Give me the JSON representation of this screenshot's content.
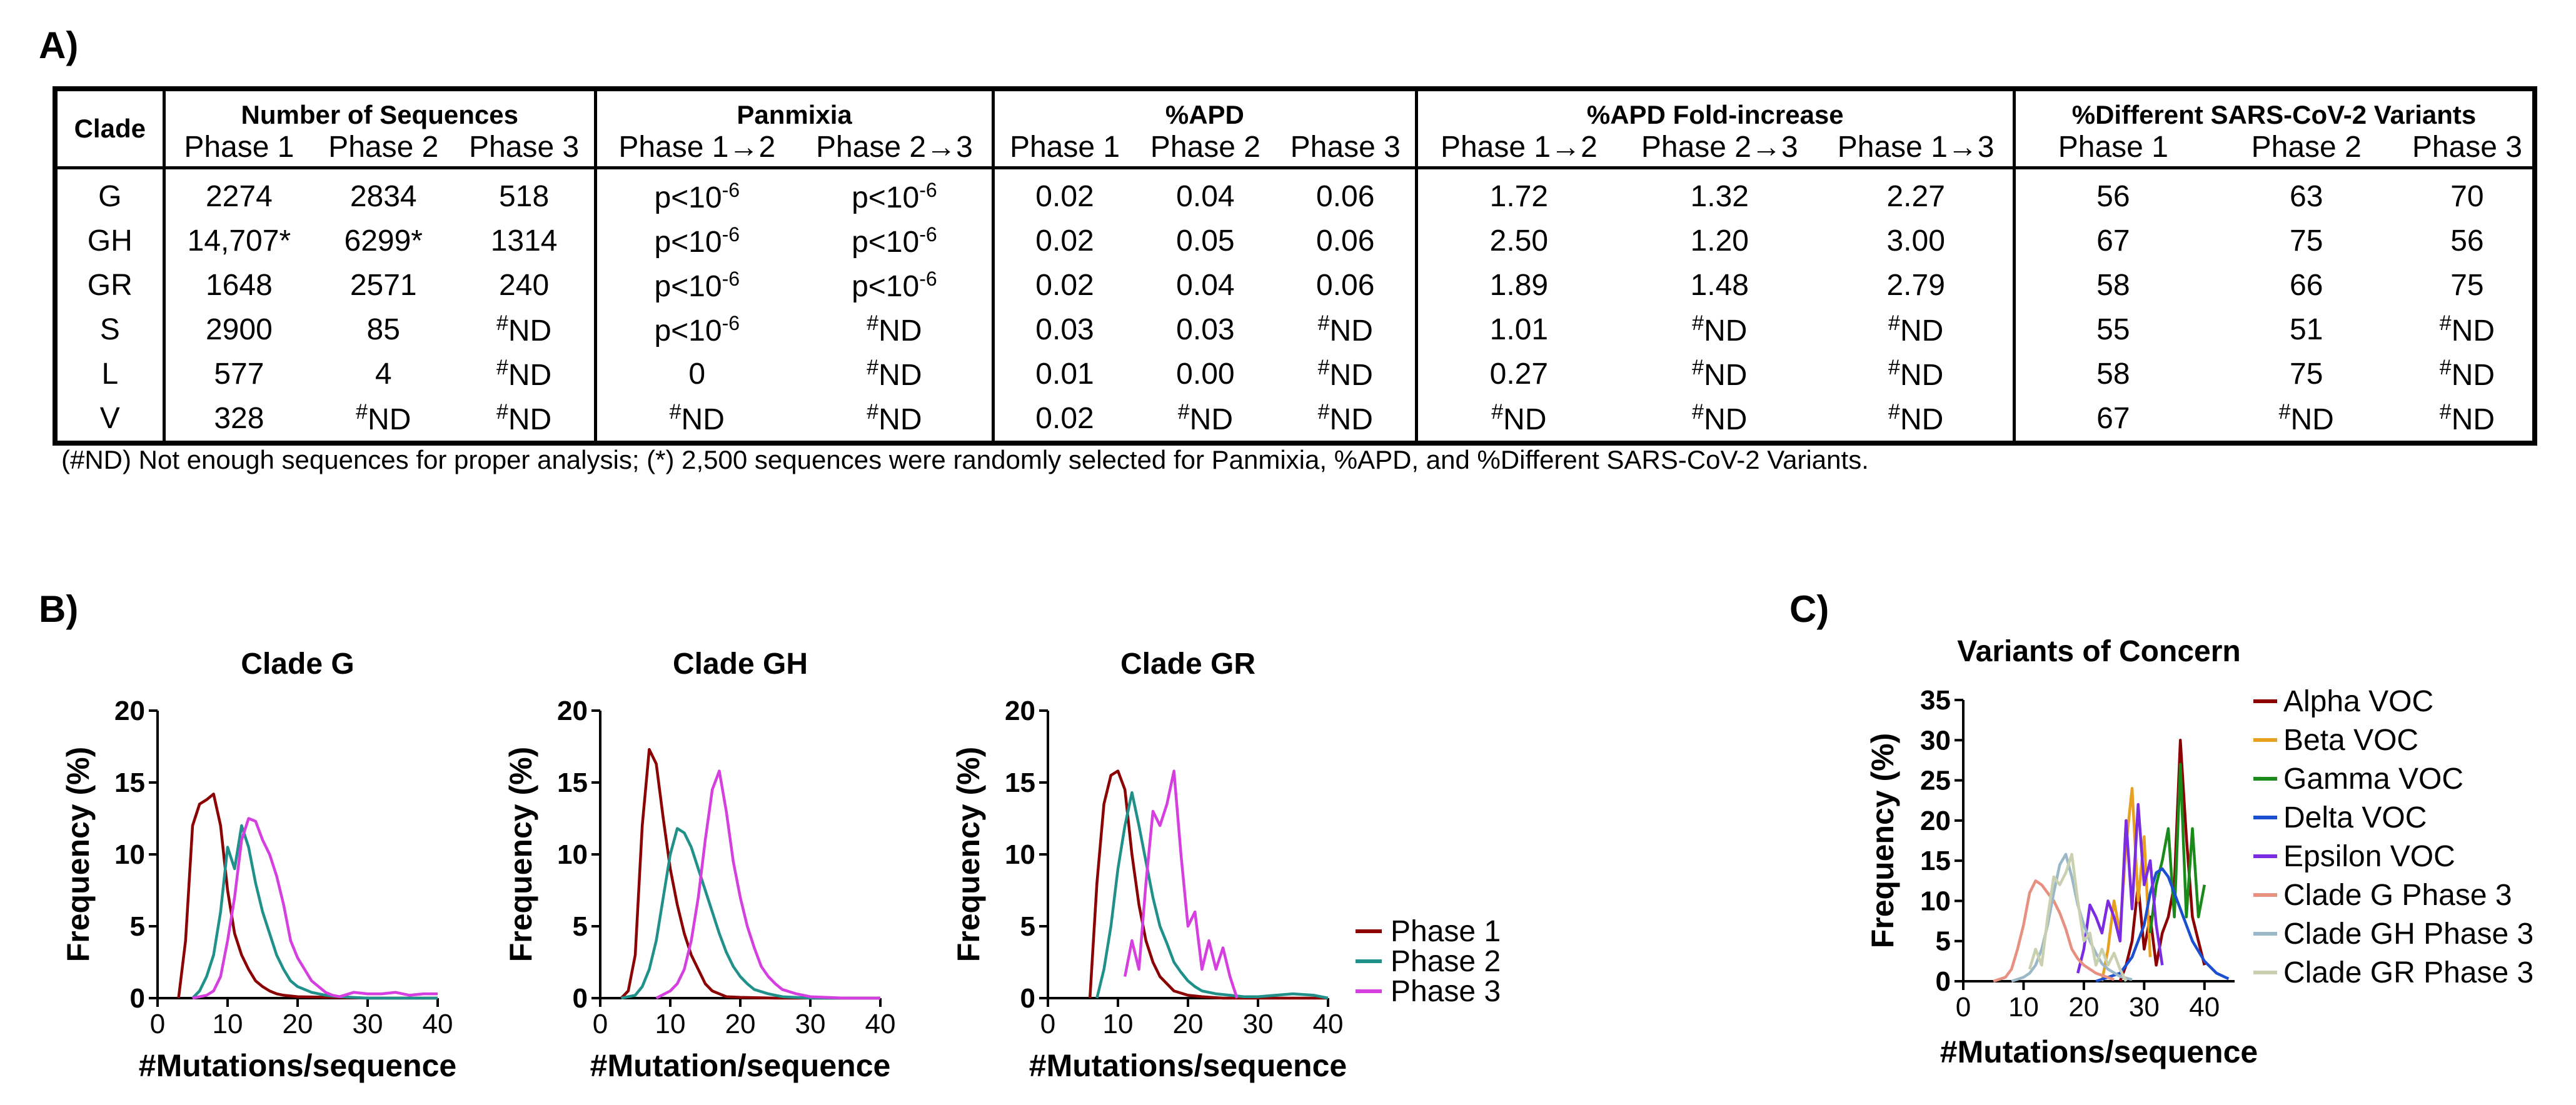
{
  "panels": {
    "a": "A)",
    "b": "B)",
    "c": "C)"
  },
  "table": {
    "clade_header": "Clade",
    "groups": [
      "Number of Sequences",
      "Panmixia",
      "%APD",
      "%APD Fold-increase",
      "%Different SARS-CoV-2 Variants"
    ],
    "sub_headers": [
      "Phase 1",
      "Phase 2",
      "Phase 3",
      "Phase 1→2",
      "Phase 2→3",
      "Phase 1",
      "Phase 2",
      "Phase 3",
      "Phase 1→2",
      "Phase 2→3",
      "Phase 1→3",
      "Phase 1",
      "Phase 2",
      "Phase 3"
    ],
    "rows": [
      {
        "clade": "G",
        "cells": [
          "2274",
          "2834",
          "518",
          "p<10-6",
          "p<10-6",
          "0.02",
          "0.04",
          "0.06",
          "1.72",
          "1.32",
          "2.27",
          "56",
          "63",
          "70"
        ]
      },
      {
        "clade": "GH",
        "cells": [
          "14,707*",
          "6299*",
          "1314",
          "p<10-6",
          "p<10-6",
          "0.02",
          "0.05",
          "0.06",
          "2.50",
          "1.20",
          "3.00",
          "67",
          "75",
          "56"
        ]
      },
      {
        "clade": "GR",
        "cells": [
          "1648",
          "2571",
          "240",
          "p<10-6",
          "p<10-6",
          "0.02",
          "0.04",
          "0.06",
          "1.89",
          "1.48",
          "2.79",
          "58",
          "66",
          "75"
        ]
      },
      {
        "clade": "S",
        "cells": [
          "2900",
          "85",
          "#ND",
          "p<10-6",
          "#ND",
          "0.03",
          "0.03",
          "#ND",
          "1.01",
          "#ND",
          "#ND",
          "55",
          "51",
          "#ND"
        ]
      },
      {
        "clade": "L",
        "cells": [
          "577",
          "4",
          "#ND",
          "0",
          "#ND",
          "0.01",
          "0.00",
          "#ND",
          "0.27",
          "#ND",
          "#ND",
          "58",
          "75",
          "#ND"
        ]
      },
      {
        "clade": "V",
        "cells": [
          "328",
          "#ND",
          "#ND",
          "#ND",
          "#ND",
          "0.02",
          "#ND",
          "#ND",
          "#ND",
          "#ND",
          "#ND",
          "67",
          "#ND",
          "#ND"
        ]
      }
    ],
    "footnote": "(#ND) Not enough sequences for proper analysis; (*) 2,500 sequences were randomly selected for Panmixia, %APD, and %Different SARS-CoV-2 Variants."
  },
  "chart_data": [
    {
      "type": "line",
      "title": "Clade G",
      "xlabel": "#Mutations/sequence",
      "ylabel": "Frequency (%)",
      "xlim": [
        0,
        40
      ],
      "ylim": [
        0,
        20
      ],
      "xticks": [
        0,
        10,
        20,
        30,
        40
      ],
      "yticks": [
        0,
        5,
        10,
        15,
        20
      ],
      "series": [
        {
          "name": "Phase 1",
          "color": "#8b0000",
          "x": [
            3,
            4,
            5,
            6,
            7,
            8,
            9,
            10,
            11,
            12,
            13,
            14,
            15,
            16,
            17,
            18,
            20,
            25,
            30,
            40
          ],
          "y": [
            0,
            4,
            12,
            13.5,
            13.8,
            14.2,
            12,
            7.5,
            4.5,
            3,
            2,
            1.2,
            0.8,
            0.5,
            0.3,
            0.2,
            0.1,
            0.05,
            0,
            0
          ]
        },
        {
          "name": "Phase 2",
          "color": "#20908a",
          "x": [
            5,
            6,
            7,
            8,
            9,
            10,
            11,
            12,
            13,
            14,
            15,
            16,
            17,
            18,
            19,
            20,
            22,
            24,
            26,
            30,
            35,
            40
          ],
          "y": [
            0,
            0.5,
            1.5,
            3,
            6,
            10.5,
            9,
            12,
            10.5,
            8,
            6,
            4.5,
            3,
            2,
            1.2,
            0.8,
            0.4,
            0.2,
            0.1,
            0,
            0,
            0
          ]
        },
        {
          "name": "Phase 3",
          "color": "#d53fe0",
          "x": [
            5,
            7,
            8,
            9,
            10,
            11,
            12,
            13,
            14,
            15,
            16,
            17,
            18,
            19,
            20,
            21,
            22,
            23,
            24,
            25,
            26,
            28,
            30,
            32,
            34,
            36,
            38,
            40
          ],
          "y": [
            0,
            0.2,
            0.5,
            1.5,
            4,
            7,
            11,
            12.5,
            12.3,
            11,
            10,
            8.5,
            6.5,
            4,
            2.8,
            2,
            1.2,
            0.8,
            0.4,
            0.2,
            0.1,
            0.4,
            0.3,
            0.3,
            0.4,
            0.2,
            0.3,
            0.3
          ]
        }
      ]
    },
    {
      "type": "line",
      "title": "Clade GH",
      "xlabel": "#Mutation/sequence",
      "ylabel": "Frequency (%)",
      "xlim": [
        0,
        40
      ],
      "ylim": [
        0,
        20
      ],
      "xticks": [
        0,
        10,
        20,
        30,
        40
      ],
      "yticks": [
        0,
        5,
        10,
        15,
        20
      ],
      "series": [
        {
          "name": "Phase 1",
          "color": "#8b0000",
          "x": [
            3,
            4,
            5,
            6,
            7,
            8,
            9,
            10,
            11,
            12,
            13,
            14,
            15,
            16,
            17,
            18,
            20,
            25,
            40
          ],
          "y": [
            0,
            0.5,
            3,
            12,
            17.3,
            16.3,
            12.5,
            9,
            6.5,
            4.5,
            3,
            2,
            1,
            0.5,
            0.3,
            0.1,
            0.05,
            0,
            0
          ]
        },
        {
          "name": "Phase 2",
          "color": "#20908a",
          "x": [
            3,
            5,
            6,
            7,
            8,
            9,
            10,
            11,
            12,
            13,
            14,
            15,
            16,
            17,
            18,
            19,
            20,
            21,
            22,
            24,
            26,
            30,
            35,
            40
          ],
          "y": [
            0,
            0.2,
            0.8,
            2,
            4,
            7,
            10,
            11.8,
            11.5,
            10.5,
            9,
            7.5,
            6,
            4.5,
            3.2,
            2.2,
            1.5,
            1,
            0.6,
            0.3,
            0.1,
            0,
            0,
            0
          ]
        },
        {
          "name": "Phase 3",
          "color": "#d53fe0",
          "x": [
            8,
            10,
            11,
            12,
            13,
            14,
            15,
            16,
            17,
            18,
            19,
            20,
            21,
            22,
            23,
            24,
            25,
            26,
            28,
            30,
            35,
            40
          ],
          "y": [
            0,
            0.5,
            1,
            2,
            4,
            7,
            11,
            14.5,
            15.8,
            13,
            9.5,
            7,
            5,
            3.5,
            2.2,
            1.5,
            1,
            0.6,
            0.3,
            0.1,
            0,
            0
          ]
        }
      ]
    },
    {
      "type": "line",
      "title": "Clade GR",
      "xlabel": "#Mutations/sequence",
      "ylabel": "Frequency (%)",
      "xlim": [
        0,
        40
      ],
      "ylim": [
        0,
        20
      ],
      "xticks": [
        0,
        10,
        20,
        30,
        40
      ],
      "yticks": [
        0,
        5,
        10,
        15,
        20
      ],
      "series": [
        {
          "name": "Phase 1",
          "color": "#8b0000",
          "x": [
            6,
            7,
            8,
            9,
            10,
            11,
            12,
            13,
            14,
            15,
            16,
            17,
            18,
            20,
            22,
            25,
            30,
            40
          ],
          "y": [
            0,
            8,
            13.5,
            15.5,
            15.8,
            14.5,
            10,
            6.5,
            4,
            2.5,
            1.5,
            1,
            0.5,
            0.2,
            0.1,
            0,
            0,
            0
          ]
        },
        {
          "name": "Phase 2",
          "color": "#20908a",
          "x": [
            7,
            8,
            9,
            10,
            11,
            12,
            13,
            14,
            15,
            16,
            17,
            18,
            19,
            20,
            21,
            22,
            24,
            26,
            28,
            30,
            35,
            38,
            40
          ],
          "y": [
            0,
            2,
            5,
            9,
            12,
            14.3,
            12,
            9.5,
            7,
            5,
            3.8,
            2.5,
            1.8,
            1.2,
            0.8,
            0.5,
            0.3,
            0.2,
            0.1,
            0.1,
            0.3,
            0.2,
            0
          ]
        },
        {
          "name": "Phase 3",
          "color": "#d53fe0",
          "x": [
            11,
            12,
            13,
            14,
            15,
            16,
            17,
            18,
            19,
            20,
            21,
            22,
            23,
            24,
            25,
            26,
            27
          ],
          "y": [
            1.5,
            4,
            2,
            8,
            13,
            12,
            13.5,
            15.8,
            10,
            5,
            6,
            2,
            4,
            2,
            3.5,
            1.5,
            0
          ]
        }
      ]
    },
    {
      "type": "line",
      "title": "Variants of Concern",
      "xlabel": "#Mutations/sequence",
      "ylabel": "Frequency (%)",
      "xlim": [
        0,
        45
      ],
      "ylim": [
        0,
        35
      ],
      "xticks": [
        0,
        10,
        20,
        30,
        40
      ],
      "yticks": [
        0,
        5,
        10,
        15,
        20,
        25,
        30,
        35
      ],
      "series": [
        {
          "name": "Alpha VOC",
          "color": "#8b0000",
          "x": [
            26,
            27,
            28,
            29,
            30,
            31,
            32,
            33,
            34,
            35,
            36,
            37,
            38,
            39,
            40
          ],
          "y": [
            0,
            2,
            5,
            12,
            4,
            8,
            2,
            6,
            8,
            12,
            30,
            18,
            8,
            5,
            2
          ]
        },
        {
          "name": "Beta VOC",
          "color": "#e8a020",
          "x": [
            23,
            24,
            25,
            26,
            27,
            28,
            29,
            30,
            31
          ],
          "y": [
            0,
            4,
            10,
            6,
            17,
            24,
            10,
            18,
            3
          ]
        },
        {
          "name": "Gamma VOC",
          "color": "#1a8a1a",
          "x": [
            31,
            32,
            33,
            34,
            35,
            36,
            37,
            38,
            39,
            40
          ],
          "y": [
            6,
            12,
            15,
            19,
            8,
            27,
            8,
            19,
            8,
            12
          ]
        },
        {
          "name": "Delta VOC",
          "color": "#1a4fd0",
          "x": [
            22,
            24,
            26,
            28,
            30,
            31,
            32,
            33,
            34,
            35,
            36,
            37,
            38,
            40,
            42,
            44
          ],
          "y": [
            0,
            0.5,
            1,
            3,
            7,
            11,
            13.5,
            14,
            13,
            11,
            9,
            7,
            5,
            2.5,
            1,
            0.3
          ]
        },
        {
          "name": "Epsilon VOC",
          "color": "#7b2be0",
          "x": [
            19,
            20,
            21,
            22,
            23,
            24,
            25,
            26,
            27,
            28,
            29,
            30,
            31,
            32,
            33
          ],
          "y": [
            1,
            4,
            9.5,
            8,
            6,
            10,
            8,
            5,
            20,
            9,
            22,
            12,
            15,
            7,
            2
          ]
        },
        {
          "name": "Clade G Phase 3",
          "color": "#e89080",
          "x": [
            5,
            7,
            8,
            9,
            10,
            11,
            12,
            13,
            14,
            15,
            16,
            17,
            18,
            19,
            20,
            22,
            25
          ],
          "y": [
            0,
            0.5,
            1.5,
            4,
            7,
            11,
            12.5,
            12,
            11,
            10,
            8.5,
            6.5,
            4,
            2.8,
            2,
            1,
            0.2
          ]
        },
        {
          "name": "Clade GH Phase 3",
          "color": "#9ab8c8",
          "x": [
            8,
            10,
            11,
            12,
            13,
            14,
            15,
            16,
            17,
            18,
            19,
            20,
            21,
            22,
            23,
            24,
            26,
            28
          ],
          "y": [
            0,
            0.5,
            1,
            2,
            4,
            7,
            11,
            14.5,
            15.8,
            13,
            9.5,
            7,
            5,
            3.5,
            2.2,
            1.5,
            0.6,
            0.2
          ]
        },
        {
          "name": "Clade GR Phase 3",
          "color": "#c8d0b0",
          "x": [
            11,
            12,
            13,
            14,
            15,
            16,
            17,
            18,
            19,
            20,
            21,
            22,
            23,
            24,
            25,
            26,
            27
          ],
          "y": [
            1.5,
            4,
            2,
            8,
            13,
            12,
            13.5,
            15.8,
            10,
            5,
            6,
            2,
            4,
            2,
            3.5,
            1.5,
            0
          ]
        }
      ]
    }
  ]
}
